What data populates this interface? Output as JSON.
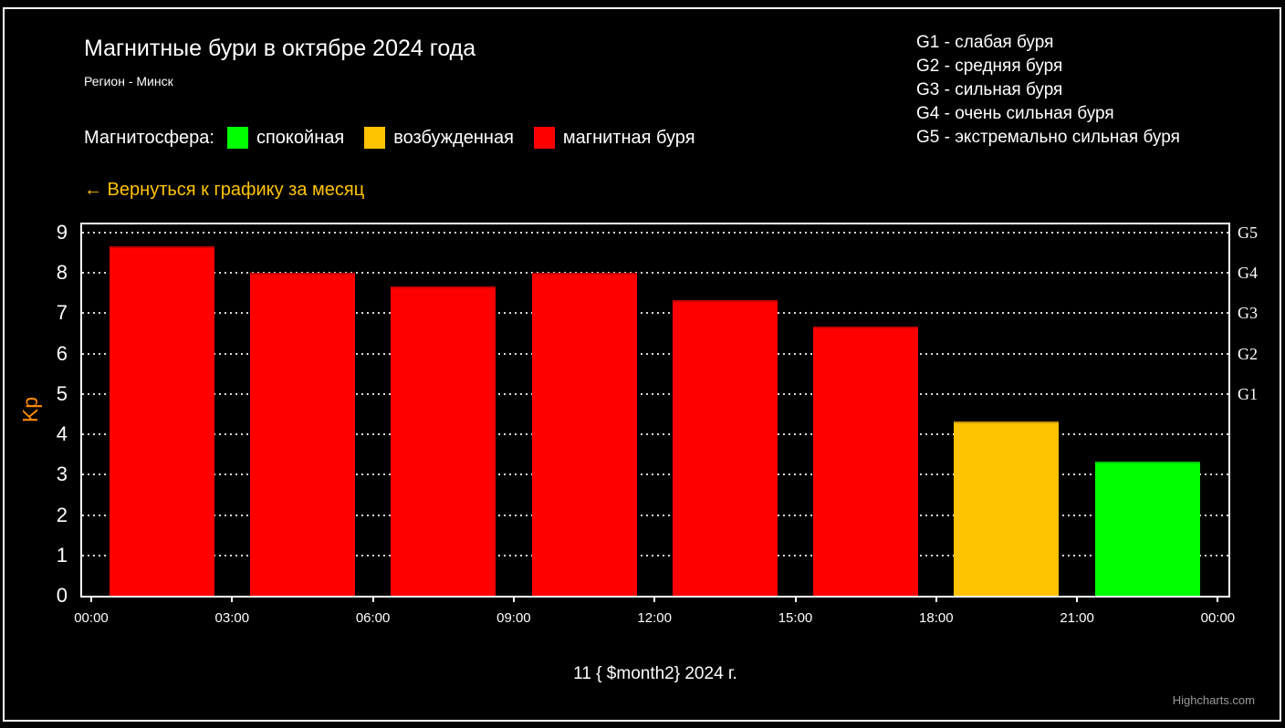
{
  "header": {
    "title": "Магнитные бури в октябре 2024 года",
    "subtitle": "Регион - Минск"
  },
  "legend": {
    "label": "Магнитосфера:",
    "items": [
      {
        "label": "спокойная",
        "color": "#00FF00"
      },
      {
        "label": "возбужденная",
        "color": "#FFC200"
      },
      {
        "label": "магнитная буря",
        "color": "#FF0000"
      }
    ]
  },
  "storm_scale": [
    "G1 - слабая буря",
    "G2 - средняя буря",
    "G3 - сильная буря",
    "G4 - очень сильная буря",
    "G5 - экстремально сильная буря"
  ],
  "back_link": "← Вернуться к графику за месяц",
  "credit": "Highcharts.com",
  "chart_data": {
    "type": "bar",
    "title": "Магнитные бури в октябре 2024 года",
    "subtitle": "Регион - Минск",
    "xlabel": "11 { $month2} 2024 г.",
    "ylabel": "Kp",
    "ylim": [
      0,
      9.2
    ],
    "grid": "dotted-horizontal",
    "x_ticks": [
      "00:00",
      "03:00",
      "06:00",
      "09:00",
      "12:00",
      "15:00",
      "18:00",
      "21:00",
      "00:00"
    ],
    "y_ticks": [
      0,
      1,
      2,
      3,
      4,
      5,
      6,
      7,
      8,
      9
    ],
    "right_axis_labels": [
      {
        "label": "G1",
        "kp": 5
      },
      {
        "label": "G2",
        "kp": 6
      },
      {
        "label": "G3",
        "kp": 7
      },
      {
        "label": "G4",
        "kp": 8
      },
      {
        "label": "G5",
        "kp": 9
      }
    ],
    "bars": [
      {
        "time_start": "00:00",
        "kp": 8.67,
        "color": "#FF0000",
        "state": "магнитная буря"
      },
      {
        "time_start": "03:00",
        "kp": 8.0,
        "color": "#FF0000",
        "state": "магнитная буря"
      },
      {
        "time_start": "06:00",
        "kp": 7.67,
        "color": "#FF0000",
        "state": "магнитная буря"
      },
      {
        "time_start": "09:00",
        "kp": 8.0,
        "color": "#FF0000",
        "state": "магнитная буря"
      },
      {
        "time_start": "12:00",
        "kp": 7.33,
        "color": "#FF0000",
        "state": "магнитная буря"
      },
      {
        "time_start": "15:00",
        "kp": 6.67,
        "color": "#FF0000",
        "state": "магнитная буря"
      },
      {
        "time_start": "18:00",
        "kp": 4.33,
        "color": "#FFC200",
        "state": "возбужденная"
      },
      {
        "time_start": "21:00",
        "kp": 3.33,
        "color": "#00FF00",
        "state": "спокойная"
      }
    ]
  }
}
